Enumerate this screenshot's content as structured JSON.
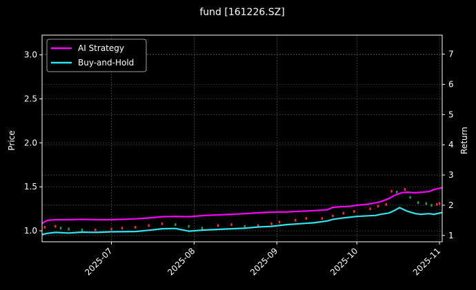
{
  "chart_data": {
    "type": "line",
    "title": "fund [161226.SZ]",
    "ylabel_left": "Price",
    "ylabel_right": "Return",
    "left_ylim": [
      0.875,
      3.225
    ],
    "right_ylim": [
      0.79,
      7.63
    ],
    "left_ticks": [
      "1.0",
      "1.5",
      "2.0",
      "2.5",
      "3.0"
    ],
    "right_ticks": [
      "1",
      "2",
      "3",
      "4",
      "5",
      "6",
      "7"
    ],
    "x_ticks": [
      "2025-07",
      "2025-08",
      "2025-09",
      "2025-10",
      "2025-11"
    ],
    "xlim": [
      "2025-06-05",
      "2025-11-02"
    ],
    "grid": true,
    "legend_position": "top-left",
    "background": "#000000",
    "colors": {
      "ai_strategy": "#ff00ff",
      "buy_and_hold": "#2ee6f0",
      "candle_up": "#ff2a2a",
      "candle_down": "#20a040",
      "grid": "#555555"
    },
    "series": [
      {
        "name": "AI Strategy",
        "axis": "right",
        "x": [
          "2025-06-05",
          "2025-06-07",
          "2025-06-10",
          "2025-06-15",
          "2025-06-20",
          "2025-06-25",
          "2025-06-28",
          "2025-07-01",
          "2025-07-05",
          "2025-07-10",
          "2025-07-15",
          "2025-07-20",
          "2025-07-25",
          "2025-07-30",
          "2025-08-05",
          "2025-08-10",
          "2025-08-15",
          "2025-08-20",
          "2025-08-25",
          "2025-08-30",
          "2025-09-05",
          "2025-09-10",
          "2025-09-15",
          "2025-09-20",
          "2025-09-22",
          "2025-09-25",
          "2025-09-28",
          "2025-10-01",
          "2025-10-05",
          "2025-10-08",
          "2025-10-10",
          "2025-10-13",
          "2025-10-15",
          "2025-10-18",
          "2025-10-20",
          "2025-10-23",
          "2025-10-25",
          "2025-10-28",
          "2025-10-30",
          "2025-11-02"
        ],
        "values": [
          1.4,
          1.5,
          1.52,
          1.52,
          1.53,
          1.52,
          1.52,
          1.52,
          1.53,
          1.55,
          1.58,
          1.62,
          1.63,
          1.62,
          1.66,
          1.68,
          1.7,
          1.72,
          1.75,
          1.77,
          1.78,
          1.8,
          1.82,
          1.85,
          1.93,
          1.95,
          1.96,
          2.0,
          2.03,
          2.08,
          2.12,
          2.22,
          2.32,
          2.42,
          2.43,
          2.41,
          2.43,
          2.45,
          2.52,
          2.58
        ]
      },
      {
        "name": "Buy-and-Hold",
        "axis": "right",
        "x": [
          "2025-06-05",
          "2025-06-07",
          "2025-06-10",
          "2025-06-15",
          "2025-06-20",
          "2025-06-25",
          "2025-07-01",
          "2025-07-10",
          "2025-07-15",
          "2025-07-20",
          "2025-07-25",
          "2025-07-30",
          "2025-08-05",
          "2025-08-10",
          "2025-08-15",
          "2025-08-20",
          "2025-08-25",
          "2025-08-30",
          "2025-09-05",
          "2025-09-10",
          "2025-09-15",
          "2025-09-20",
          "2025-09-22",
          "2025-09-25",
          "2025-09-28",
          "2025-10-01",
          "2025-10-05",
          "2025-10-08",
          "2025-10-10",
          "2025-10-13",
          "2025-10-15",
          "2025-10-17",
          "2025-10-20",
          "2025-10-23",
          "2025-10-25",
          "2025-10-28",
          "2025-10-30",
          "2025-11-02"
        ],
        "values": [
          1.03,
          1.07,
          1.1,
          1.08,
          1.11,
          1.1,
          1.12,
          1.13,
          1.17,
          1.22,
          1.23,
          1.14,
          1.18,
          1.2,
          1.22,
          1.24,
          1.28,
          1.3,
          1.36,
          1.39,
          1.42,
          1.48,
          1.53,
          1.57,
          1.6,
          1.63,
          1.65,
          1.66,
          1.7,
          1.74,
          1.82,
          1.92,
          1.8,
          1.72,
          1.7,
          1.72,
          1.7,
          1.76
        ]
      },
      {
        "name": "",
        "type": "candlestick",
        "axis": "left",
        "x": [
          "2025-06-06",
          "2025-06-10",
          "2025-06-12",
          "2025-06-15",
          "2025-06-20",
          "2025-06-25",
          "2025-07-01",
          "2025-07-05",
          "2025-07-10",
          "2025-07-15",
          "2025-07-20",
          "2025-07-25",
          "2025-07-30",
          "2025-08-04",
          "2025-08-10",
          "2025-08-15",
          "2025-08-20",
          "2025-08-25",
          "2025-08-30",
          "2025-09-02",
          "2025-09-08",
          "2025-09-12",
          "2025-09-18",
          "2025-09-22",
          "2025-09-26",
          "2025-09-30",
          "2025-10-06",
          "2025-10-09",
          "2025-10-12",
          "2025-10-14",
          "2025-10-16",
          "2025-10-19",
          "2025-10-21",
          "2025-10-24",
          "2025-10-27",
          "2025-10-29",
          "2025-10-31",
          "2025-11-01"
        ],
        "values": [
          1.04,
          1.05,
          1.03,
          1.02,
          1.01,
          1.01,
          1.02,
          1.03,
          1.04,
          1.06,
          1.08,
          1.07,
          1.05,
          1.03,
          1.06,
          1.07,
          1.05,
          1.06,
          1.08,
          1.1,
          1.12,
          1.14,
          1.14,
          1.17,
          1.2,
          1.22,
          1.25,
          1.28,
          1.3,
          1.45,
          1.44,
          1.47,
          1.38,
          1.32,
          1.31,
          1.29,
          1.3,
          1.31
        ]
      }
    ]
  }
}
